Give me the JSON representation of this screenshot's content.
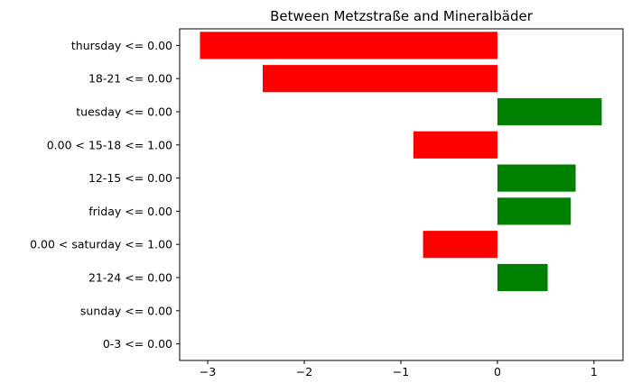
{
  "chart_data": {
    "type": "bar",
    "orientation": "horizontal",
    "title": "Between Metzstraße and Mineralbäder",
    "xlabel": "",
    "ylabel": "",
    "categories": [
      "thursday <= 0.00",
      "18-21 <= 0.00",
      "tuesday <= 0.00",
      "0.00 < 15-18 <= 1.00",
      "12-15 <= 0.00",
      "friday <= 0.00",
      "0.00 < saturday <= 1.00",
      "21-24 <= 0.00",
      "sunday <= 0.00",
      "0-3 <= 0.00"
    ],
    "values": [
      -3.08,
      -2.43,
      1.08,
      -0.87,
      0.81,
      0.76,
      -0.77,
      0.52,
      0.0,
      0.0
    ],
    "xlim": [
      -3.29,
      1.3
    ],
    "xticks": [
      -3,
      -2,
      -1,
      0,
      1
    ],
    "xtick_labels": [
      "−3",
      "−2",
      "−1",
      "0",
      "1"
    ],
    "grid": false,
    "colors": {
      "positive": "#008000",
      "negative": "#ff0000",
      "axis": "#000000"
    }
  }
}
